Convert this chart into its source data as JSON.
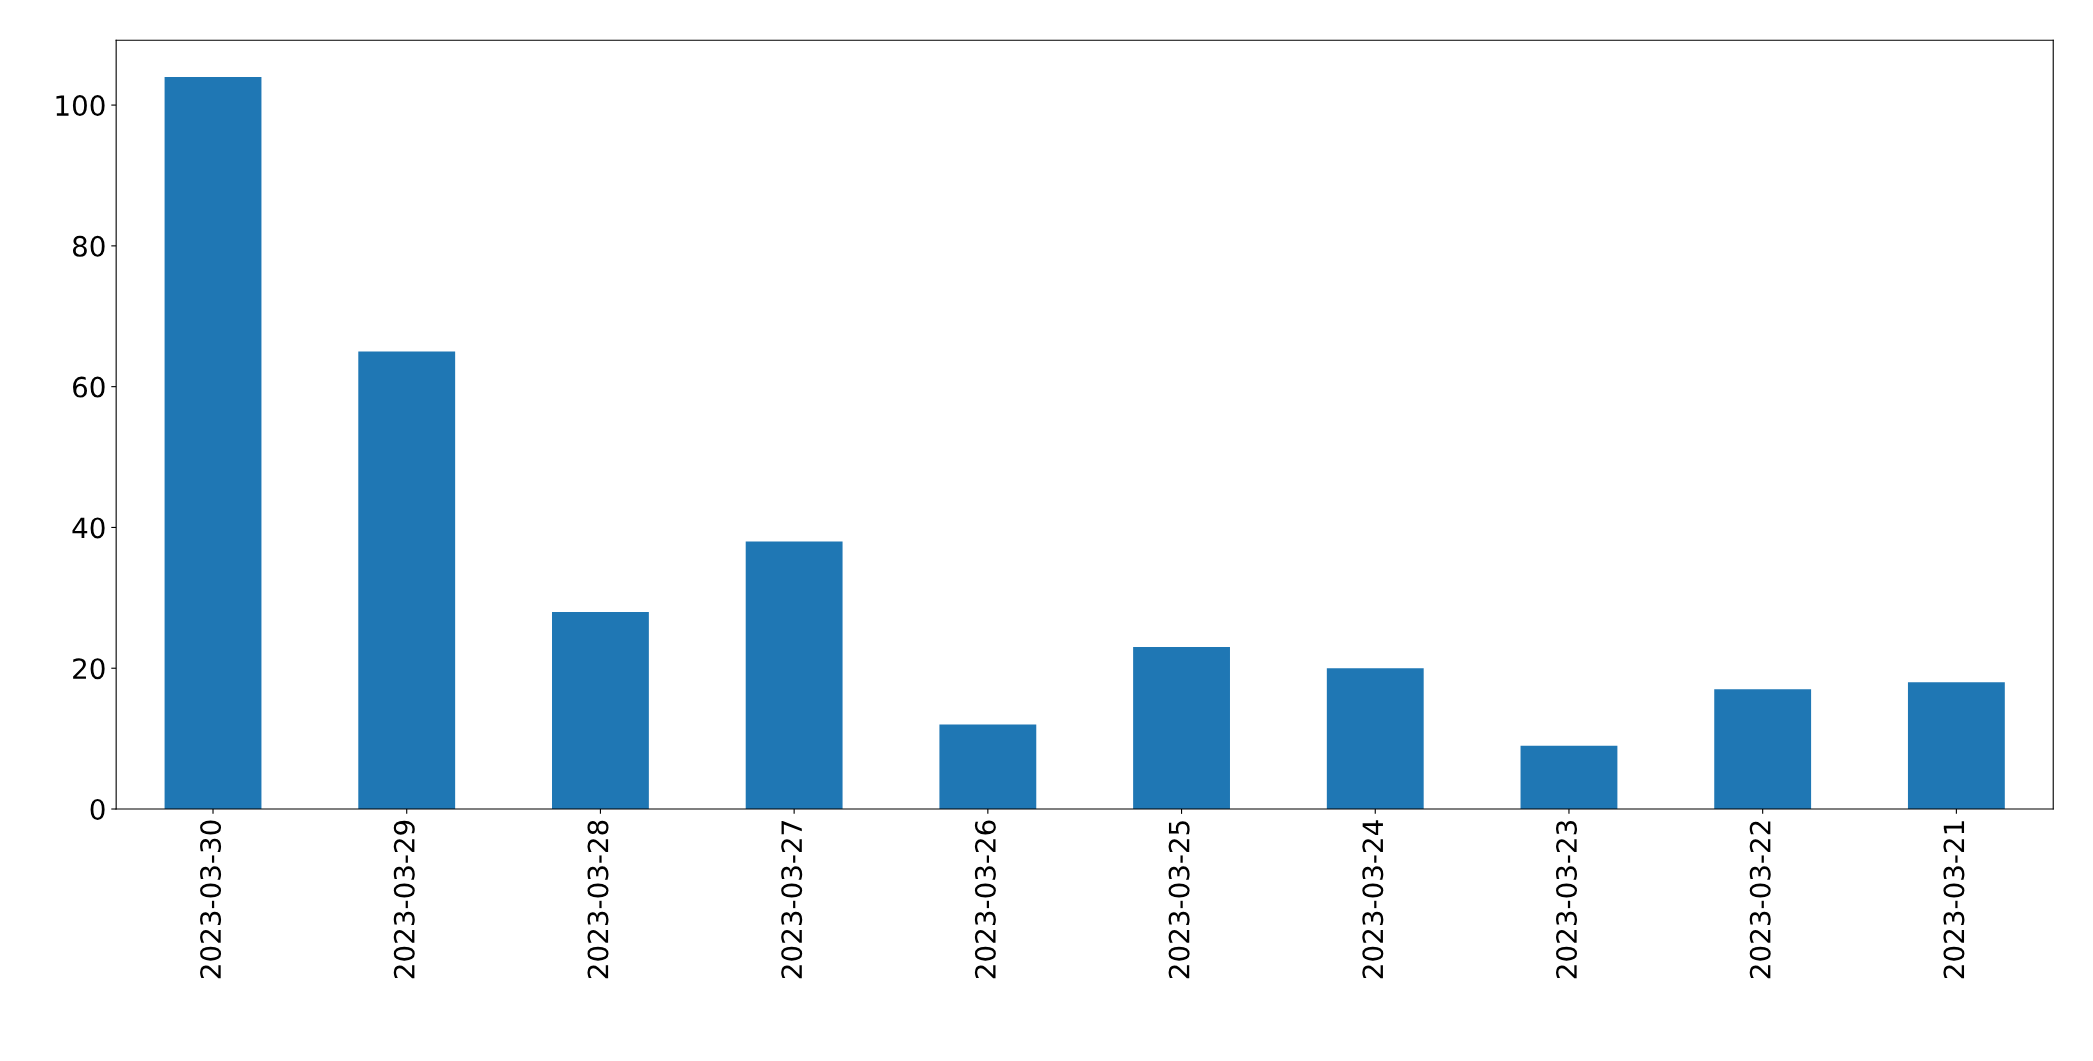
{
  "chart_data": {
    "type": "bar",
    "categories": [
      "2023-03-30",
      "2023-03-29",
      "2023-03-28",
      "2023-03-27",
      "2023-03-26",
      "2023-03-25",
      "2023-03-24",
      "2023-03-23",
      "2023-03-22",
      "2023-03-21"
    ],
    "values": [
      104,
      65,
      28,
      38,
      12,
      23,
      20,
      9,
      17,
      18
    ],
    "color": "#1f77b4",
    "ylim": [
      0,
      109.2
    ],
    "yticks": [
      0,
      20,
      40,
      60,
      80,
      100
    ],
    "grid": false,
    "legend": false
  }
}
